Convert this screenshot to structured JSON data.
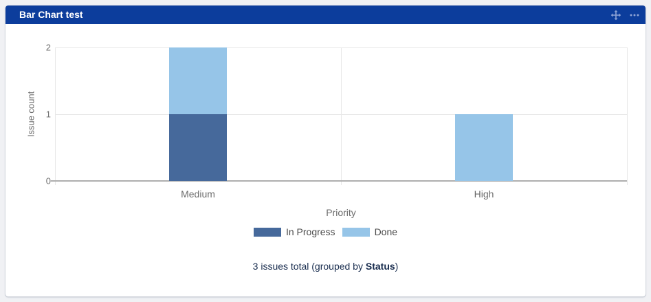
{
  "header": {
    "title": "Bar Chart test",
    "icons": [
      {
        "name": "move-icon",
        "glyph": "four-direction-arrows"
      },
      {
        "name": "more-options-icon",
        "glyph": "horizontal-ellipsis"
      }
    ]
  },
  "chart_data": {
    "type": "bar",
    "stacked": true,
    "title": "Bar Chart test",
    "xlabel": "Priority",
    "ylabel": "Issue count",
    "categories": [
      "Medium",
      "High"
    ],
    "series": [
      {
        "name": "In Progress",
        "color": "#46699B",
        "values": [
          1,
          0
        ]
      },
      {
        "name": "Done",
        "color": "#96C5E8",
        "values": [
          1,
          1
        ]
      }
    ],
    "ylim": [
      0,
      2
    ],
    "yticks": [
      0,
      1,
      2
    ],
    "grid": true,
    "legend_position": "bottom"
  },
  "footer": {
    "prefix": "3 issues total (grouped by ",
    "group_label": "Status",
    "suffix": ")"
  },
  "colors": {
    "header_bg": "#0C3D9C",
    "header_icon": "#8FA4D6",
    "in_progress": "#46699B",
    "done": "#96C5E8",
    "grid_line": "#E8E8E8",
    "axis_line": "#AEAEAE",
    "axis_text": "#6B6B6B",
    "footer_text": "#172B4D",
    "card_bg": "#FFFFFF",
    "page_bg": "#F0F1F4"
  }
}
